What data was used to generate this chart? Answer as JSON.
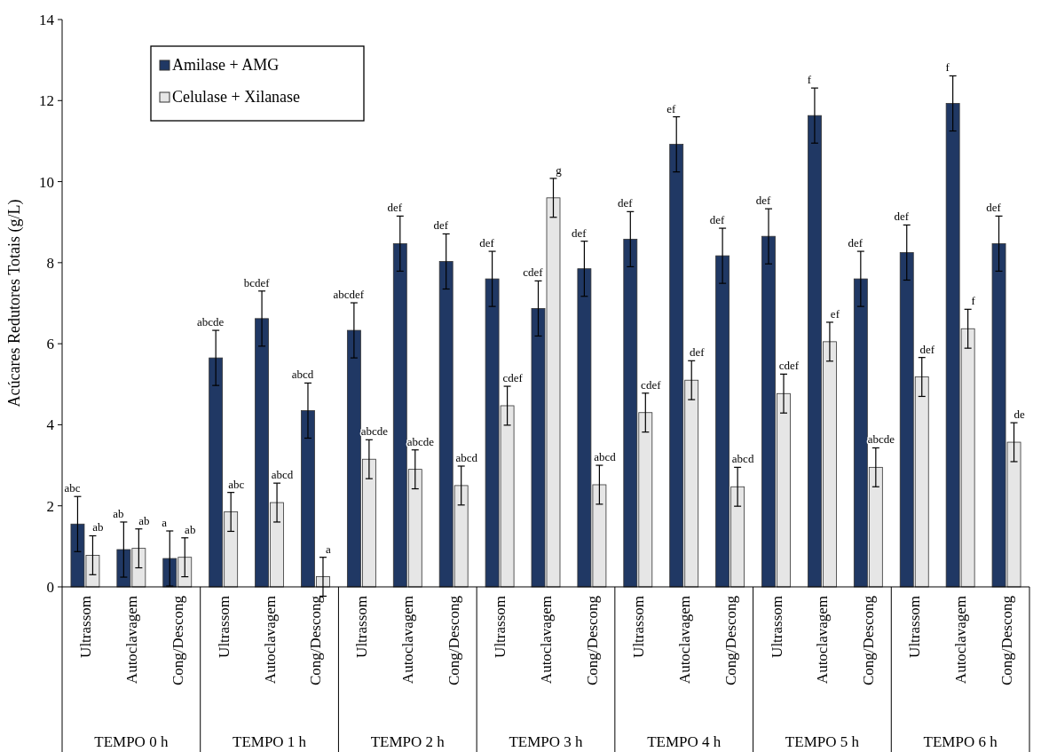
{
  "chart_data": {
    "type": "bar",
    "ylabel": "Acúcares Redutores Totais (g/L)",
    "categories": [
      "Ultrassom",
      "Autoclavagem",
      "Cong/Descong",
      "Ultrassom",
      "Autoclavagem",
      "Cong/Descong",
      "Ultrassom",
      "Autoclavagem",
      "Cong/Descong",
      "Ultrassom",
      "Autoclavagem",
      "Cong/Descong",
      "Ultrassom",
      "Autoclavagem",
      "Cong/Descong",
      "Ultrassom",
      "Autoclavagem",
      "Cong/Descong",
      "Ultrassom",
      "Autoclavagem",
      "Cong/Descong"
    ],
    "series": [
      {
        "name": "Amilase + AMG",
        "color": "#203864",
        "values": [
          1.55,
          0.92,
          0.7,
          5.65,
          6.62,
          4.35,
          6.33,
          8.47,
          8.03,
          7.6,
          6.87,
          7.85,
          8.58,
          10.92,
          8.17,
          8.65,
          11.63,
          7.6,
          8.25,
          11.93,
          8.47
        ],
        "errors": [
          0.68,
          0.68,
          0.68,
          0.68,
          0.68,
          0.68,
          0.68,
          0.68,
          0.68,
          0.68,
          0.68,
          0.68,
          0.68,
          0.68,
          0.68,
          0.68,
          0.68,
          0.68,
          0.68,
          0.68,
          0.68
        ],
        "value_labels": [
          "abc",
          "ab",
          "a",
          "abcde",
          "bcdef",
          "abcd",
          "abcdef",
          "def",
          "def",
          "def",
          "cdef",
          "def",
          "def",
          "ef",
          "def",
          "def",
          "f",
          "def",
          "def",
          "f",
          "def"
        ]
      },
      {
        "name": "Celulase + Xilanase",
        "color": "#e6e6e6",
        "values": [
          0.78,
          0.95,
          0.73,
          1.85,
          2.08,
          0.25,
          3.15,
          2.9,
          2.5,
          4.47,
          9.6,
          2.52,
          4.3,
          5.1,
          2.47,
          4.77,
          6.05,
          2.95,
          5.18,
          6.37,
          3.57
        ],
        "errors": [
          0.48,
          0.48,
          0.48,
          0.48,
          0.48,
          0.48,
          0.48,
          0.48,
          0.48,
          0.48,
          0.48,
          0.48,
          0.48,
          0.48,
          0.48,
          0.48,
          0.48,
          0.48,
          0.48,
          0.48,
          0.48
        ],
        "value_labels": [
          "ab",
          "ab",
          "ab",
          "abc",
          "abcd",
          "a",
          "abcde",
          "abcde",
          "abcd",
          "cdef",
          "g",
          "abcd",
          "cdef",
          "def",
          "abcd",
          "cdef",
          "ef",
          "abcde",
          "def",
          "f",
          "de"
        ]
      }
    ],
    "annotations": [
      "TEMPO 0 h",
      "TEMPO 1 h",
      "TEMPO 2 h",
      "TEMPO 3 h",
      "TEMPO 4 h",
      "TEMPO 5 h",
      "TEMPO 6 h"
    ],
    "ylim": [
      0,
      14
    ],
    "yticks": [
      0,
      2,
      4,
      6,
      8,
      10,
      12,
      14
    ],
    "grid": false,
    "legend": "top left"
  }
}
